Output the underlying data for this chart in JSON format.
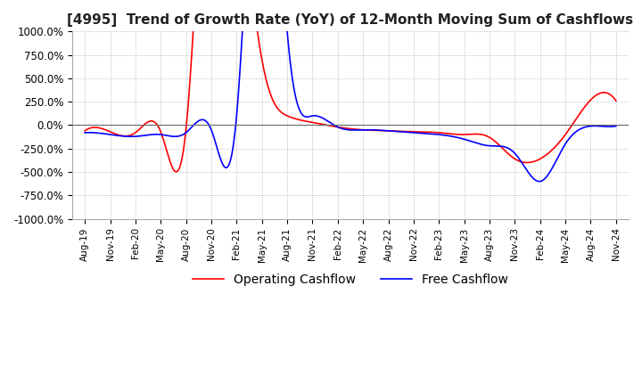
{
  "title": "[4995]  Trend of Growth Rate (YoY) of 12-Month Moving Sum of Cashflows",
  "title_fontsize": 11,
  "ylim": [
    -1000,
    1000
  ],
  "yticks": [
    -1000,
    -750,
    -500,
    -250,
    0,
    250,
    500,
    750,
    1000
  ],
  "ytick_labels": [
    "-1000.0%",
    "-750.0%",
    "-500.0%",
    "-250.0%",
    "0.0%",
    "250.0%",
    "500.0%",
    "750.0%",
    "1000.0%"
  ],
  "operating_color": "#ff0000",
  "free_color": "#0000ff",
  "background_color": "#ffffff",
  "grid_color": "#aaaaaa",
  "legend_labels": [
    "Operating Cashflow",
    "Free Cashflow"
  ],
  "x_labels": [
    "Aug-19",
    "Nov-19",
    "Feb-20",
    "May-20",
    "Aug-20",
    "Nov-20",
    "Feb-21",
    "May-21",
    "Aug-21",
    "Nov-21",
    "Feb-22",
    "May-22",
    "Aug-22",
    "Nov-22",
    "Feb-23",
    "May-23",
    "Aug-23",
    "Nov-23",
    "Feb-24",
    "May-24",
    "Aug-24",
    "Nov-24"
  ],
  "operating_cashflow": [
    -60,
    -70,
    -80,
    -70,
    -40,
    4000,
    3000,
    700,
    100,
    30,
    -20,
    -50,
    -60,
    -70,
    -80,
    -100,
    -130,
    -360,
    -360,
    -100,
    270,
    260
  ],
  "free_cashflow": [
    -80,
    -100,
    -120,
    -100,
    -80,
    -50,
    100,
    4000,
    1000,
    100,
    -20,
    -50,
    -60,
    -80,
    -100,
    -150,
    -220,
    -300,
    -600,
    -200,
    -10,
    -10
  ]
}
